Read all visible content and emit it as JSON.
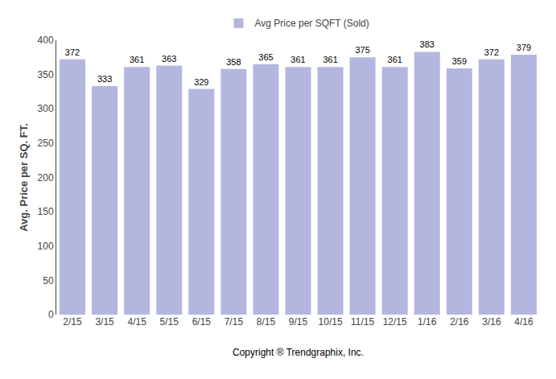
{
  "chart_data": {
    "type": "bar",
    "categories": [
      "2/15",
      "3/15",
      "4/15",
      "5/15",
      "6/15",
      "7/15",
      "8/15",
      "9/15",
      "10/15",
      "11/15",
      "12/15",
      "1/16",
      "2/16",
      "3/16",
      "4/16"
    ],
    "series": [
      {
        "name": "Avg Price per SQFT (Sold)",
        "color": "#b3b7e0",
        "values": [
          372,
          333,
          361,
          363,
          329,
          358,
          365,
          361,
          361,
          375,
          361,
          383,
          359,
          372,
          379
        ]
      }
    ],
    "ylabel": "Avg. Price per SQ. FT.",
    "annotations": [
      "Copyright ® Trendgraphix, Inc."
    ],
    "ylim": [
      0,
      400
    ],
    "yticks": [
      0,
      50,
      100,
      150,
      200,
      250,
      300,
      350,
      400
    ],
    "data_labels": true,
    "grid": false,
    "legend": "top"
  }
}
